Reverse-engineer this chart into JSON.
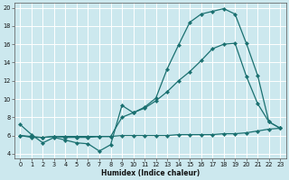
{
  "title": "",
  "xlabel": "Humidex (Indice chaleur)",
  "bg_color": "#cce8ee",
  "line_color": "#1a7070",
  "grid_color": "#b0d8e0",
  "xlim": [
    -0.5,
    23.5
  ],
  "ylim": [
    3.5,
    20.5
  ],
  "xticks": [
    0,
    1,
    2,
    3,
    4,
    5,
    6,
    7,
    8,
    9,
    10,
    11,
    12,
    13,
    14,
    15,
    16,
    17,
    18,
    19,
    20,
    21,
    22,
    23
  ],
  "yticks": [
    4,
    6,
    8,
    10,
    12,
    14,
    16,
    18,
    20
  ],
  "line1_x": [
    0,
    1,
    2,
    3,
    4,
    5,
    6,
    7,
    8,
    9,
    10,
    11,
    12,
    13,
    14,
    15,
    16,
    17,
    18,
    19,
    20,
    21,
    22,
    23
  ],
  "line1_y": [
    7.2,
    6.1,
    5.2,
    5.8,
    5.5,
    5.2,
    5.1,
    4.3,
    5.0,
    9.3,
    8.5,
    9.1,
    10.1,
    13.3,
    15.9,
    18.4,
    19.3,
    19.6,
    19.9,
    19.3,
    16.1,
    12.6,
    7.5,
    6.8
  ],
  "line2_x": [
    0,
    1,
    2,
    3,
    4,
    5,
    6,
    7,
    8,
    9,
    10,
    11,
    12,
    13,
    14,
    15,
    16,
    17,
    18,
    19,
    20,
    21,
    22,
    23
  ],
  "line2_y": [
    6.0,
    5.9,
    5.8,
    5.9,
    5.8,
    5.8,
    5.8,
    5.9,
    5.9,
    8.0,
    8.5,
    9.0,
    9.8,
    10.8,
    12.0,
    13.0,
    14.2,
    15.5,
    16.0,
    16.1,
    12.5,
    9.5,
    7.5,
    6.8
  ],
  "line3_x": [
    0,
    1,
    2,
    3,
    4,
    5,
    6,
    7,
    8,
    9,
    10,
    11,
    12,
    13,
    14,
    15,
    16,
    17,
    18,
    19,
    20,
    21,
    22,
    23
  ],
  "line3_y": [
    6.0,
    5.8,
    5.8,
    5.9,
    5.9,
    5.9,
    5.9,
    5.9,
    5.9,
    6.0,
    6.0,
    6.0,
    6.0,
    6.0,
    6.1,
    6.1,
    6.1,
    6.1,
    6.2,
    6.2,
    6.3,
    6.5,
    6.7,
    6.8
  ]
}
